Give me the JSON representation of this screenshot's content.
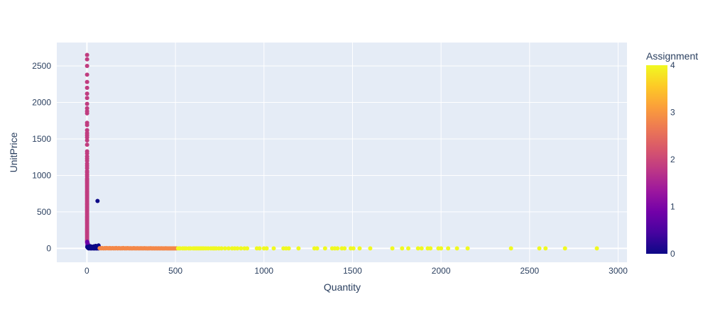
{
  "chart_data": {
    "type": "scatter",
    "title": "",
    "xlabel": "Quantity",
    "ylabel": "UnitPrice",
    "xlim": [
      -170,
      3050
    ],
    "ylim": [
      -190,
      2820
    ],
    "x_ticks": [
      0,
      500,
      1000,
      1500,
      2000,
      2500,
      3000
    ],
    "x_tick_labels": [
      "0",
      "500",
      "1000",
      "1500",
      "2000",
      "2500",
      "3000"
    ],
    "y_ticks": [
      0,
      500,
      1000,
      1500,
      2000,
      2500
    ],
    "y_tick_labels": [
      "0",
      "500",
      "1000",
      "1500",
      "2000",
      "2500"
    ],
    "colorbar": {
      "title": "Assignment",
      "min": 0,
      "max": 4,
      "ticks": [
        0,
        1,
        2,
        3,
        4
      ],
      "tick_labels": [
        "0",
        "1",
        "2",
        "3",
        "4"
      ],
      "colorscale": [
        "#0d0887",
        "#46039f",
        "#7201a8",
        "#9c179e",
        "#bd3786",
        "#d8576b",
        "#ed7953",
        "#fb9f3a",
        "#fdca26",
        "#f0f921"
      ]
    },
    "series": [
      {
        "name": "Assignment 2",
        "assignment": 2,
        "color": "#c03d80",
        "points": [
          [
            1,
            2650
          ],
          [
            1,
            2590
          ],
          [
            1,
            2500
          ],
          [
            1,
            2380
          ],
          [
            1,
            2280
          ],
          [
            1,
            2200
          ],
          [
            1,
            2120
          ],
          [
            1,
            2060
          ],
          [
            1,
            1980
          ],
          [
            1,
            1920
          ],
          [
            1,
            1880
          ],
          [
            1,
            1850
          ],
          [
            1,
            1720
          ],
          [
            1,
            1690
          ],
          [
            1,
            1620
          ],
          [
            1,
            1580
          ],
          [
            1,
            1550
          ],
          [
            1,
            1520
          ],
          [
            1,
            1480
          ],
          [
            1,
            1420
          ],
          [
            1,
            1330
          ],
          [
            1,
            1300
          ],
          [
            1,
            1260
          ],
          [
            1,
            1230
          ],
          [
            1,
            1200
          ],
          [
            1,
            1160
          ],
          [
            1,
            1130
          ],
          [
            1,
            1100
          ],
          [
            1,
            1060
          ],
          [
            1,
            1040
          ],
          [
            1,
            1010
          ],
          [
            1,
            990
          ],
          [
            1,
            960
          ],
          [
            1,
            940
          ],
          [
            1,
            920
          ],
          [
            1,
            900
          ],
          [
            1,
            880
          ],
          [
            1,
            860
          ],
          [
            1,
            840
          ],
          [
            1,
            820
          ],
          [
            1,
            800
          ],
          [
            1,
            780
          ],
          [
            1,
            760
          ],
          [
            1,
            740
          ],
          [
            1,
            720
          ],
          [
            1,
            700
          ],
          [
            1,
            680
          ],
          [
            1,
            660
          ],
          [
            1,
            640
          ],
          [
            1,
            620
          ],
          [
            1,
            600
          ],
          [
            1,
            580
          ],
          [
            1,
            560
          ],
          [
            1,
            540
          ],
          [
            1,
            520
          ],
          [
            1,
            500
          ],
          [
            1,
            480
          ],
          [
            1,
            460
          ],
          [
            1,
            440
          ],
          [
            1,
            420
          ],
          [
            1,
            400
          ],
          [
            1,
            380
          ],
          [
            1,
            360
          ],
          [
            1,
            340
          ],
          [
            1,
            320
          ],
          [
            1,
            300
          ],
          [
            1,
            280
          ],
          [
            1,
            260
          ],
          [
            1,
            240
          ],
          [
            1,
            220
          ],
          [
            1,
            200
          ],
          [
            1,
            180
          ],
          [
            1,
            160
          ],
          [
            1,
            140
          ],
          [
            1,
            120
          ],
          [
            1,
            100
          ],
          [
            1,
            80
          ]
        ]
      },
      {
        "name": "Assignment 1",
        "assignment": 1,
        "color": "#6a00a8",
        "points": [
          [
            2,
            90
          ],
          [
            4,
            70
          ],
          [
            6,
            55
          ],
          [
            3,
            45
          ],
          [
            8,
            40
          ],
          [
            5,
            30
          ]
        ]
      },
      {
        "name": "Assignment 0",
        "assignment": 0,
        "color": "#0d0887",
        "points": [
          [
            60,
            650
          ],
          [
            2,
            20
          ],
          [
            5,
            10
          ],
          [
            8,
            5
          ],
          [
            10,
            0
          ],
          [
            12,
            15
          ],
          [
            15,
            8
          ],
          [
            18,
            3
          ],
          [
            20,
            12
          ],
          [
            22,
            0
          ],
          [
            25,
            6
          ],
          [
            28,
            18
          ],
          [
            30,
            2
          ],
          [
            32,
            10
          ],
          [
            35,
            4
          ],
          [
            38,
            14
          ],
          [
            40,
            0
          ],
          [
            42,
            8
          ],
          [
            45,
            3
          ],
          [
            48,
            20
          ],
          [
            50,
            6
          ],
          [
            52,
            1
          ],
          [
            55,
            10
          ],
          [
            58,
            0
          ],
          [
            60,
            30
          ],
          [
            62,
            5
          ],
          [
            64,
            12
          ],
          [
            66,
            40
          ],
          [
            68,
            2
          ],
          [
            70,
            8
          ],
          [
            10,
            25
          ],
          [
            20,
            30
          ],
          [
            30,
            22
          ],
          [
            40,
            28
          ],
          [
            50,
            35
          ],
          [
            15,
            2
          ],
          [
            25,
            1
          ],
          [
            35,
            0
          ],
          [
            45,
            1
          ],
          [
            55,
            2
          ],
          [
            65,
            0
          ]
        ]
      },
      {
        "name": "Assignment 3",
        "assignment": 3,
        "color": "#f48849",
        "points": [
          [
            72,
            3
          ],
          [
            80,
            1
          ],
          [
            85,
            5
          ],
          [
            90,
            2
          ],
          [
            95,
            0
          ],
          [
            100,
            4
          ],
          [
            105,
            1
          ],
          [
            110,
            6
          ],
          [
            115,
            2
          ],
          [
            120,
            3
          ],
          [
            125,
            0
          ],
          [
            130,
            5
          ],
          [
            135,
            1
          ],
          [
            140,
            2
          ],
          [
            145,
            4
          ],
          [
            150,
            1
          ],
          [
            155,
            3
          ],
          [
            160,
            0
          ],
          [
            165,
            6
          ],
          [
            170,
            2
          ],
          [
            175,
            1
          ],
          [
            180,
            4
          ],
          [
            185,
            2
          ],
          [
            190,
            0
          ],
          [
            195,
            3
          ],
          [
            200,
            1
          ],
          [
            205,
            5
          ],
          [
            210,
            2
          ],
          [
            215,
            0
          ],
          [
            220,
            3
          ],
          [
            225,
            1
          ],
          [
            230,
            4
          ],
          [
            235,
            2
          ],
          [
            240,
            0
          ],
          [
            245,
            3
          ],
          [
            250,
            1
          ],
          [
            255,
            2
          ],
          [
            260,
            0
          ],
          [
            265,
            4
          ],
          [
            270,
            1
          ],
          [
            275,
            2
          ],
          [
            280,
            0
          ],
          [
            285,
            3
          ],
          [
            290,
            1
          ],
          [
            295,
            2
          ],
          [
            300,
            0
          ],
          [
            305,
            3
          ],
          [
            310,
            1
          ],
          [
            315,
            2
          ],
          [
            320,
            0
          ],
          [
            325,
            3
          ],
          [
            330,
            1
          ],
          [
            335,
            2
          ],
          [
            340,
            0
          ],
          [
            345,
            1
          ],
          [
            350,
            2
          ],
          [
            355,
            0
          ],
          [
            360,
            3
          ],
          [
            365,
            1
          ],
          [
            370,
            0
          ],
          [
            375,
            2
          ],
          [
            380,
            1
          ],
          [
            385,
            0
          ],
          [
            390,
            2
          ],
          [
            395,
            1
          ],
          [
            400,
            0
          ],
          [
            405,
            2
          ],
          [
            410,
            1
          ],
          [
            415,
            0
          ],
          [
            420,
            2
          ],
          [
            425,
            1
          ],
          [
            430,
            0
          ],
          [
            435,
            1
          ],
          [
            440,
            0
          ],
          [
            445,
            2
          ],
          [
            450,
            1
          ],
          [
            455,
            0
          ],
          [
            460,
            1
          ],
          [
            465,
            0
          ],
          [
            470,
            1
          ],
          [
            475,
            0
          ],
          [
            480,
            1
          ],
          [
            485,
            0
          ],
          [
            490,
            1
          ],
          [
            495,
            0
          ],
          [
            500,
            1
          ],
          [
            505,
            0
          ]
        ]
      },
      {
        "name": "Assignment 4",
        "assignment": 4,
        "color": "#f0f921",
        "points": [
          [
            515,
            0
          ],
          [
            525,
            0
          ],
          [
            540,
            0
          ],
          [
            550,
            0
          ],
          [
            560,
            0
          ],
          [
            575,
            0
          ],
          [
            585,
            0
          ],
          [
            600,
            0
          ],
          [
            610,
            0
          ],
          [
            620,
            0
          ],
          [
            630,
            0
          ],
          [
            640,
            0
          ],
          [
            650,
            0
          ],
          [
            660,
            0
          ],
          [
            672,
            0
          ],
          [
            685,
            0
          ],
          [
            700,
            0
          ],
          [
            712,
            0
          ],
          [
            720,
            0
          ],
          [
            730,
            0
          ],
          [
            745,
            0
          ],
          [
            760,
            0
          ],
          [
            780,
            0
          ],
          [
            800,
            0
          ],
          [
            820,
            0
          ],
          [
            835,
            0
          ],
          [
            850,
            0
          ],
          [
            870,
            0
          ],
          [
            890,
            0
          ],
          [
            905,
            0
          ],
          [
            960,
            0
          ],
          [
            975,
            0
          ],
          [
            1000,
            0
          ],
          [
            1015,
            0
          ],
          [
            1055,
            0
          ],
          [
            1110,
            0
          ],
          [
            1125,
            0
          ],
          [
            1140,
            0
          ],
          [
            1195,
            0
          ],
          [
            1285,
            0
          ],
          [
            1300,
            0
          ],
          [
            1345,
            0
          ],
          [
            1385,
            0
          ],
          [
            1400,
            0
          ],
          [
            1415,
            0
          ],
          [
            1440,
            0
          ],
          [
            1455,
            0
          ],
          [
            1490,
            0
          ],
          [
            1505,
            0
          ],
          [
            1540,
            0
          ],
          [
            1600,
            0
          ],
          [
            1725,
            0
          ],
          [
            1780,
            0
          ],
          [
            1815,
            0
          ],
          [
            1870,
            0
          ],
          [
            1890,
            0
          ],
          [
            1925,
            0
          ],
          [
            1940,
            0
          ],
          [
            1985,
            0
          ],
          [
            2000,
            0
          ],
          [
            2040,
            0
          ],
          [
            2090,
            0
          ],
          [
            2150,
            0
          ],
          [
            2395,
            0
          ],
          [
            2555,
            0
          ],
          [
            2590,
            0
          ],
          [
            2700,
            0
          ],
          [
            2880,
            0
          ]
        ]
      }
    ]
  }
}
